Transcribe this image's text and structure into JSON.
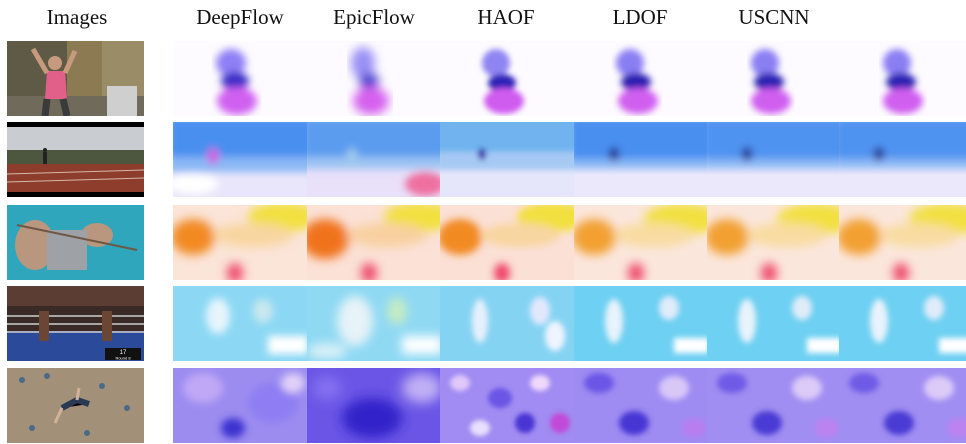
{
  "columns": [
    "Images",
    "DeepFlow",
    "EpicFlow",
    "HAOF",
    "LDOF",
    "USCNN"
  ],
  "rows": [
    {
      "scene": "person-waving",
      "flow_hue": "purple-magenta"
    },
    {
      "scene": "running-track",
      "flow_hue": "blue"
    },
    {
      "scene": "knitting-hands",
      "flow_hue": "orange-yellow"
    },
    {
      "scene": "boxing-ring",
      "flow_hue": "cyan"
    },
    {
      "scene": "rock-climbing",
      "flow_hue": "violet"
    }
  ],
  "overlay_text": {
    "boxing_scoreboard": "17",
    "boxing_round": "Round 8"
  },
  "colors": {
    "background": "#ffffff",
    "text": "#111111"
  }
}
